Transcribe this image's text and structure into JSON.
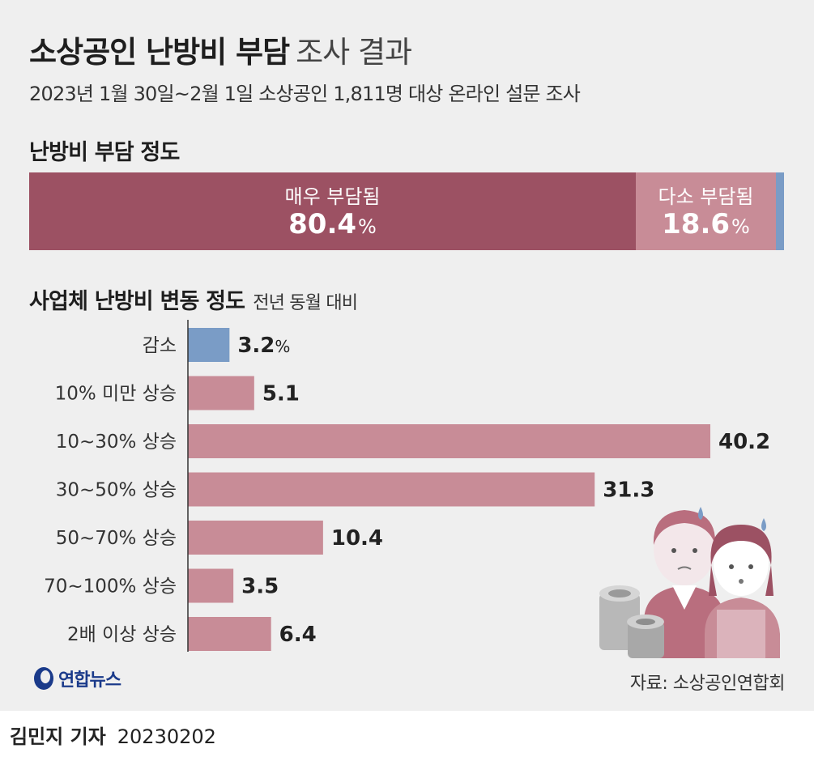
{
  "title": {
    "bold": "소상공인 난방비 부담",
    "light": "조사 결과"
  },
  "subtitle": "2023년 1월 30일~2월 1일 소상공인 1,811명 대상 온라인 설문 조사",
  "section1": {
    "title": "난방비 부담 정도"
  },
  "section2": {
    "title": "사업체 난방비 변동 정도",
    "note": "전년 동월 대비"
  },
  "chart_data": [
    {
      "type": "bar",
      "orientation": "stacked-horizontal",
      "title": "난방비 부담 정도",
      "unit": "%",
      "segments": [
        {
          "label": "매우 부담됨",
          "value": 80.4,
          "display": "80.4",
          "color": "#9c5163"
        },
        {
          "label": "다소 부담됨",
          "value": 18.6,
          "display": "18.6",
          "color": "#c88c97"
        },
        {
          "value": 1.0,
          "color": "#7a9cc6"
        }
      ]
    },
    {
      "type": "bar",
      "orientation": "horizontal",
      "title": "사업체 난방비 변동 정도",
      "subtitle": "전년 동월 대비",
      "unit": "%",
      "xlim": [
        0,
        40.2
      ],
      "categories": [
        "감소",
        "10% 미만 상승",
        "10~30% 상승",
        "30~50% 상승",
        "50~70% 상승",
        "70~100% 상승",
        "2배 이상 상승"
      ],
      "values": [
        3.2,
        5.1,
        40.2,
        31.3,
        10.4,
        3.5,
        6.4
      ],
      "value_labels": [
        "3.2",
        "5.1",
        "40.2",
        "31.3",
        "10.4",
        "3.5",
        "6.4"
      ],
      "colors": [
        "#7a9cc6",
        "#c88c97",
        "#c88c97",
        "#c88c97",
        "#c88c97",
        "#c88c97",
        "#c88c97"
      ]
    }
  ],
  "logo": {
    "text": "연합뉴스"
  },
  "source": "자료: 소상공인연합회",
  "byline": {
    "reporter": "김민지 기자",
    "date": "20230202"
  },
  "colors": {
    "background": "#efefef",
    "strong": "#9c5163",
    "medium": "#c88c97",
    "blue": "#7a9cc6"
  }
}
